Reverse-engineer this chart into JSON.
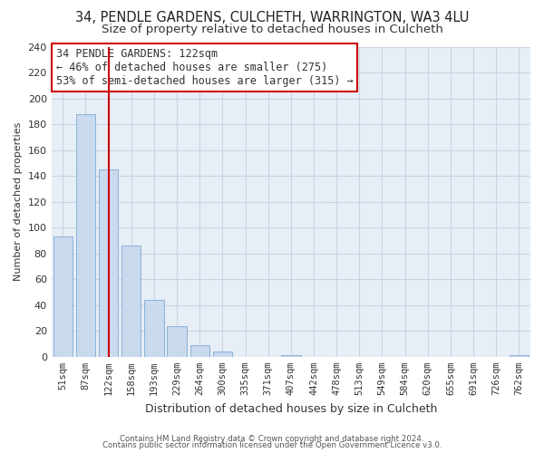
{
  "title": "34, PENDLE GARDENS, CULCHETH, WARRINGTON, WA3 4LU",
  "subtitle": "Size of property relative to detached houses in Culcheth",
  "xlabel": "Distribution of detached houses by size in Culcheth",
  "ylabel": "Number of detached properties",
  "bar_labels": [
    "51sqm",
    "87sqm",
    "122sqm",
    "158sqm",
    "193sqm",
    "229sqm",
    "264sqm",
    "300sqm",
    "335sqm",
    "371sqm",
    "407sqm",
    "442sqm",
    "478sqm",
    "513sqm",
    "549sqm",
    "584sqm",
    "620sqm",
    "655sqm",
    "691sqm",
    "726sqm",
    "762sqm"
  ],
  "bar_values": [
    93,
    188,
    145,
    86,
    44,
    24,
    9,
    4,
    0,
    0,
    1,
    0,
    0,
    0,
    0,
    0,
    0,
    0,
    0,
    0,
    1
  ],
  "bar_color": "#c9d9ee",
  "bar_edge_color": "#7baad4",
  "vline_x": 2,
  "vline_color": "#cc0000",
  "annotation_title": "34 PENDLE GARDENS: 122sqm",
  "annotation_line1": "← 46% of detached houses are smaller (275)",
  "annotation_line2": "53% of semi-detached houses are larger (315) →",
  "ylim": [
    0,
    240
  ],
  "yticks": [
    0,
    20,
    40,
    60,
    80,
    100,
    120,
    140,
    160,
    180,
    200,
    220,
    240
  ],
  "footer1": "Contains HM Land Registry data © Crown copyright and database right 2024.",
  "footer2": "Contains public sector information licensed under the Open Government Licence v3.0.",
  "bg_color": "#ffffff",
  "plot_bg_color": "#e8eef6",
  "grid_color": "#c8d4e4",
  "title_fontsize": 10.5,
  "subtitle_fontsize": 9.5,
  "ylabel_fontsize": 8,
  "xlabel_fontsize": 9,
  "tick_fontsize": 7.5,
  "ann_fontsize": 8.5,
  "footer_fontsize": 6.2
}
